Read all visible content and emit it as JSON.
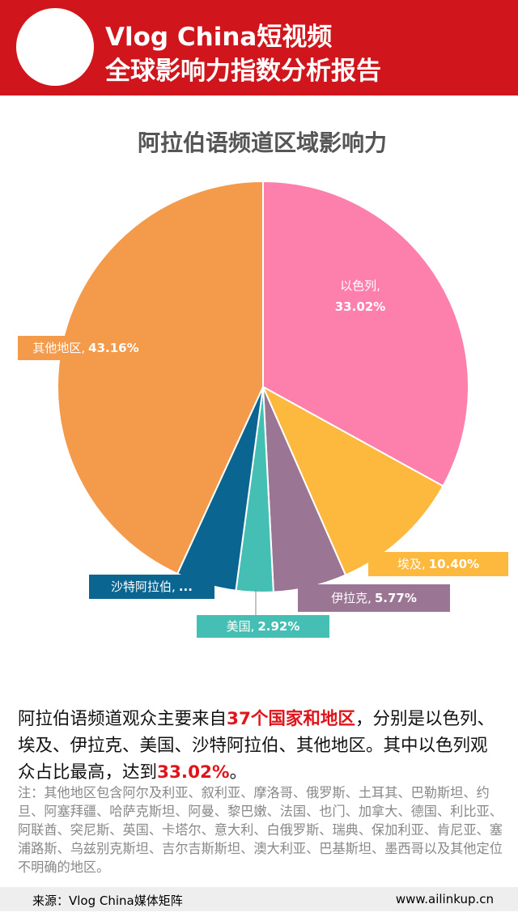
{
  "header": {
    "title_lines": [
      "Vlog China短视频",
      "全球影响力指数分析报告"
    ]
  },
  "chart_data": {
    "type": "pie",
    "title": "阿拉伯语频道区域影响力",
    "categories": [
      "以色列,",
      "埃及,",
      "伊拉克,",
      "美国,",
      "沙特阿拉伯,",
      "其他地区,"
    ],
    "values": [
      33.02,
      10.4,
      5.77,
      2.92,
      4.73,
      43.16
    ],
    "value_labels": [
      "33.02%",
      "10.40%",
      "5.77%",
      "2.92%",
      "...",
      "43.16%"
    ],
    "colors": [
      "#fd7fac",
      "#fdb83e",
      "#9a7594",
      "#45bfb4",
      "#0a6591",
      "#f49a4b"
    ]
  },
  "description": {
    "parts": [
      "阿拉伯语频道观众主要来自",
      "37个国家和地区",
      "，分别是以色列、埃及、伊拉克、美国、沙特阿拉伯、其他地区。其中以色列观众占比最高，达到",
      "33.02%",
      "。"
    ]
  },
  "note": "注：其他地区包含阿尔及利亚、叙利亚、摩洛哥、俄罗斯、土耳其、巴勒斯坦、约旦、阿塞拜疆、哈萨克斯坦、阿曼、黎巴嫩、法国、也门、加拿大、德国、利比亚、阿联酋、突尼斯、英国、卡塔尔、意大利、白俄罗斯、瑞典、保加利亚、肯尼亚、塞浦路斯、乌兹别克斯坦、吉尔吉斯斯坦、澳大利亚、巴基斯坦、墨西哥以及其他定位不明确的地区。",
  "footer": {
    "source": "来源：Vlog China媒体矩阵",
    "url": "www.ailinkup.cn"
  }
}
